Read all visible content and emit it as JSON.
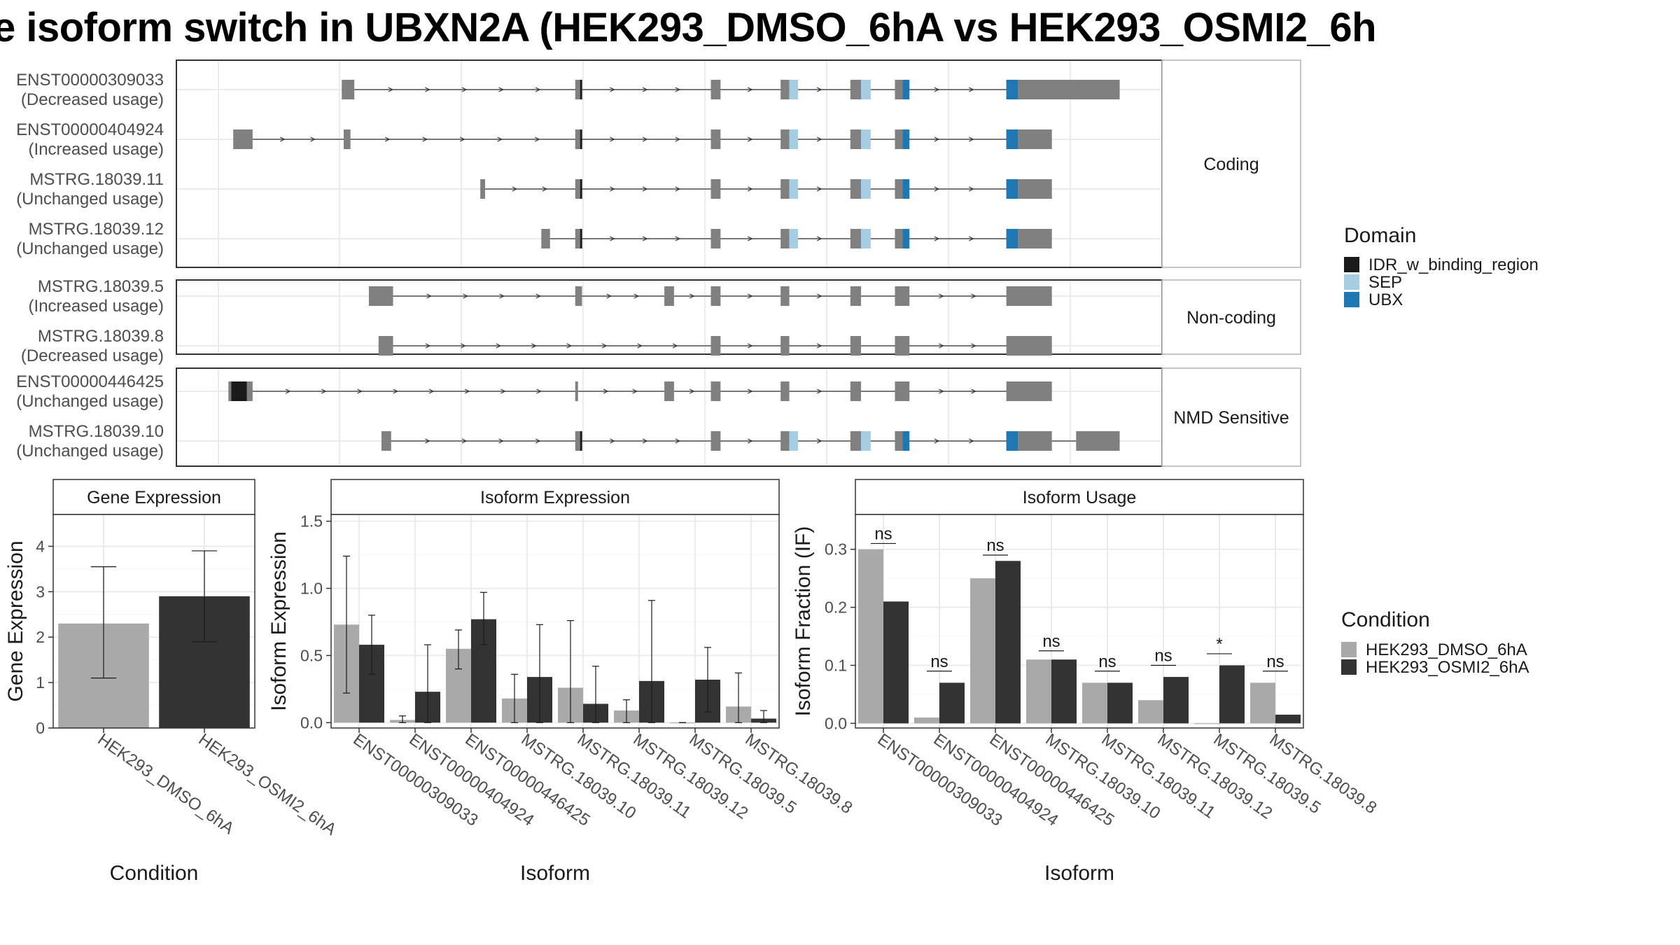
{
  "title": "e isoform switch in UBXN2A (HEK293_DMSO_6hA vs HEK293_OSMI2_6h",
  "colors": {
    "exon": "#808080",
    "IDR_w_binding_region": "#1a1a1a",
    "SEP": "#a6cee3",
    "UBX": "#1f78b4",
    "cond1": "#a9a9a9",
    "cond2": "#333333"
  },
  "structure": {
    "coord_range": [
      0,
      100
    ],
    "facets": [
      {
        "label": "Coding",
        "rows": [
          {
            "id": "ENST00000309033",
            "usage": "(Decreased usage)",
            "exons": [
              [
                16.2,
                17.5
              ],
              [
                40.3,
                40.8
              ],
              [
                54.3,
                55.3
              ],
              [
                61.5,
                62.4
              ],
              [
                68.7,
                69.8
              ],
              [
                73.3,
                74.1
              ],
              [
                84.8,
                86.0
              ],
              [
                86.0,
                96.5
              ]
            ],
            "domains": [
              [
                40.8,
                41.0,
                "IDR_w_binding_region"
              ],
              [
                62.4,
                63.3,
                "SEP"
              ],
              [
                69.8,
                70.8,
                "SEP"
              ],
              [
                74.1,
                74.8,
                "UBX"
              ],
              [
                84.8,
                86.0,
                "UBX"
              ]
            ]
          },
          {
            "id": "ENST00000404924",
            "usage": "(Increased usage)",
            "exons": [
              [
                5.0,
                7.0
              ],
              [
                16.4,
                17.1
              ],
              [
                40.3,
                40.8
              ],
              [
                54.3,
                55.3
              ],
              [
                61.5,
                62.4
              ],
              [
                68.7,
                69.8
              ],
              [
                73.3,
                74.1
              ],
              [
                84.8,
                86.0
              ],
              [
                86.0,
                89.5
              ]
            ],
            "domains": [
              [
                40.8,
                41.0,
                "IDR_w_binding_region"
              ],
              [
                62.4,
                63.3,
                "SEP"
              ],
              [
                69.8,
                70.8,
                "SEP"
              ],
              [
                74.1,
                74.8,
                "UBX"
              ],
              [
                84.8,
                86.0,
                "UBX"
              ]
            ]
          },
          {
            "id": "MSTRG.18039.11",
            "usage": "(Unchanged usage)",
            "exons": [
              [
                30.5,
                31.0
              ],
              [
                40.3,
                40.8
              ],
              [
                54.3,
                55.3
              ],
              [
                61.5,
                62.4
              ],
              [
                68.7,
                69.8
              ],
              [
                73.3,
                74.1
              ],
              [
                84.8,
                86.0
              ],
              [
                86.0,
                89.5
              ]
            ],
            "domains": [
              [
                40.8,
                41.0,
                "IDR_w_binding_region"
              ],
              [
                62.4,
                63.3,
                "SEP"
              ],
              [
                69.8,
                70.8,
                "SEP"
              ],
              [
                74.1,
                74.8,
                "UBX"
              ],
              [
                84.8,
                86.0,
                "UBX"
              ]
            ]
          },
          {
            "id": "MSTRG.18039.12",
            "usage": "(Unchanged usage)",
            "exons": [
              [
                36.8,
                37.7
              ],
              [
                40.3,
                40.8
              ],
              [
                54.3,
                55.3
              ],
              [
                61.5,
                62.4
              ],
              [
                68.7,
                69.8
              ],
              [
                73.3,
                74.1
              ],
              [
                84.8,
                86.0
              ],
              [
                86.0,
                89.5
              ]
            ],
            "domains": [
              [
                40.8,
                41.0,
                "IDR_w_binding_region"
              ],
              [
                62.4,
                63.3,
                "SEP"
              ],
              [
                69.8,
                70.8,
                "SEP"
              ],
              [
                74.1,
                74.8,
                "UBX"
              ],
              [
                84.8,
                86.0,
                "UBX"
              ]
            ]
          }
        ]
      },
      {
        "label": "Non-coding",
        "rows": [
          {
            "id": "MSTRG.18039.5",
            "usage": "(Increased usage)",
            "exons": [
              [
                19.0,
                21.5
              ],
              [
                40.3,
                41.0
              ],
              [
                49.5,
                50.5
              ],
              [
                54.3,
                55.3
              ],
              [
                61.5,
                62.4
              ],
              [
                68.7,
                69.8
              ],
              [
                73.3,
                74.8
              ],
              [
                84.8,
                89.5
              ]
            ],
            "domains": []
          },
          {
            "id": "MSTRG.18039.8",
            "usage": "(Decreased usage)",
            "exons": [
              [
                20.0,
                21.5
              ],
              [
                54.3,
                55.3
              ],
              [
                61.5,
                62.4
              ],
              [
                68.7,
                69.8
              ],
              [
                73.3,
                74.8
              ],
              [
                84.8,
                89.5
              ]
            ],
            "domains": []
          }
        ]
      },
      {
        "label": "NMD Sensitive",
        "rows": [
          {
            "id": "ENST00000446425",
            "usage": "(Unchanged usage)",
            "exons": [
              [
                4.5,
                7.0
              ],
              [
                40.3,
                40.5
              ],
              [
                49.5,
                50.5
              ],
              [
                54.3,
                55.3
              ],
              [
                61.5,
                62.4
              ],
              [
                68.7,
                69.8
              ],
              [
                73.3,
                74.8
              ],
              [
                84.8,
                89.5
              ]
            ],
            "domains": [
              [
                4.8,
                6.4,
                "IDR_w_binding_region"
              ]
            ]
          },
          {
            "id": "MSTRG.18039.10",
            "usage": "(Unchanged usage)",
            "exons": [
              [
                20.3,
                21.3
              ],
              [
                40.3,
                40.8
              ],
              [
                54.3,
                55.3
              ],
              [
                61.5,
                62.4
              ],
              [
                68.7,
                69.8
              ],
              [
                73.3,
                74.1
              ],
              [
                84.8,
                86.0
              ],
              [
                86.0,
                89.5
              ],
              [
                92.0,
                96.5
              ]
            ],
            "domains": [
              [
                40.8,
                41.0,
                "IDR_w_binding_region"
              ],
              [
                62.4,
                63.3,
                "SEP"
              ],
              [
                69.8,
                70.8,
                "SEP"
              ],
              [
                74.1,
                74.8,
                "UBX"
              ],
              [
                84.8,
                86.0,
                "UBX"
              ]
            ]
          }
        ]
      }
    ]
  },
  "legend_domain": {
    "title": "Domain",
    "items": [
      {
        "label": "IDR_w_binding_region",
        "color": "#1a1a1a"
      },
      {
        "label": "SEP",
        "color": "#a6cee3"
      },
      {
        "label": "UBX",
        "color": "#1f78b4"
      }
    ]
  },
  "legend_condition": {
    "title": "Condition",
    "items": [
      {
        "label": "HEK293_DMSO_6hA",
        "color": "#a9a9a9"
      },
      {
        "label": "HEK293_OSMI2_6hA",
        "color": "#333333"
      }
    ]
  },
  "chart_data": [
    {
      "type": "bar",
      "title": "Gene Expression",
      "xlabel": "Condition",
      "ylabel": "Gene Expression",
      "ylim": [
        0,
        4.7
      ],
      "yticks": [
        0,
        1,
        2,
        3,
        4
      ],
      "categories": [
        "HEK293_DMSO_6hA",
        "HEK293_OSMI2_6hA"
      ],
      "values": [
        2.3,
        2.9
      ],
      "error_low": [
        1.1,
        1.9
      ],
      "error_high": [
        3.55,
        3.9
      ]
    },
    {
      "type": "bar",
      "title": "Isoform Expression",
      "xlabel": "Isoform",
      "ylabel": "Isoform Expression",
      "ylim": [
        -0.04,
        1.55
      ],
      "yticks": [
        0.0,
        0.5,
        1.0,
        1.5
      ],
      "categories": [
        "ENST00000309033",
        "ENST00000404924",
        "ENST00000446425",
        "MSTRG.18039.10",
        "MSTRG.18039.11",
        "MSTRG.18039.12",
        "MSTRG.18039.5",
        "MSTRG.18039.8"
      ],
      "series": [
        {
          "name": "HEK293_DMSO_6hA",
          "values": [
            0.73,
            0.02,
            0.55,
            0.18,
            0.26,
            0.09,
            0.0,
            0.12
          ],
          "error_low": [
            0.22,
            0.0,
            0.4,
            0.0,
            0.0,
            0.0,
            0.0,
            0.0
          ],
          "error_high": [
            1.24,
            0.05,
            0.69,
            0.36,
            0.76,
            0.17,
            0.0,
            0.37
          ]
        },
        {
          "name": "HEK293_OSMI2_6hA",
          "values": [
            0.58,
            0.23,
            0.77,
            0.34,
            0.14,
            0.31,
            0.32,
            0.03
          ],
          "error_low": [
            0.36,
            0.0,
            0.58,
            0.0,
            0.0,
            0.0,
            0.08,
            0.0
          ],
          "error_high": [
            0.8,
            0.58,
            0.97,
            0.73,
            0.42,
            0.91,
            0.56,
            0.09
          ]
        }
      ]
    },
    {
      "type": "bar",
      "title": "Isoform Usage",
      "xlabel": "Isoform",
      "ylabel": "Isoform Fraction (IF)",
      "ylim": [
        -0.008,
        0.36
      ],
      "yticks": [
        0.0,
        0.1,
        0.2,
        0.3
      ],
      "categories": [
        "ENST00000309033",
        "ENST00000404924",
        "ENST00000446425",
        "MSTRG.18039.10",
        "MSTRG.18039.11",
        "MSTRG.18039.12",
        "MSTRG.18039.5",
        "MSTRG.18039.8"
      ],
      "series": [
        {
          "name": "HEK293_DMSO_6hA",
          "values": [
            0.3,
            0.01,
            0.25,
            0.11,
            0.07,
            0.04,
            0.0,
            0.07
          ]
        },
        {
          "name": "HEK293_OSMI2_6hA",
          "values": [
            0.21,
            0.07,
            0.28,
            0.11,
            0.07,
            0.08,
            0.1,
            0.015
          ]
        }
      ],
      "significance": [
        "ns",
        "ns",
        "ns",
        "ns",
        "ns",
        "ns",
        "*",
        "ns"
      ],
      "significance_y": [
        0.31,
        0.09,
        0.29,
        0.125,
        0.09,
        0.1,
        0.12,
        0.09
      ]
    }
  ]
}
